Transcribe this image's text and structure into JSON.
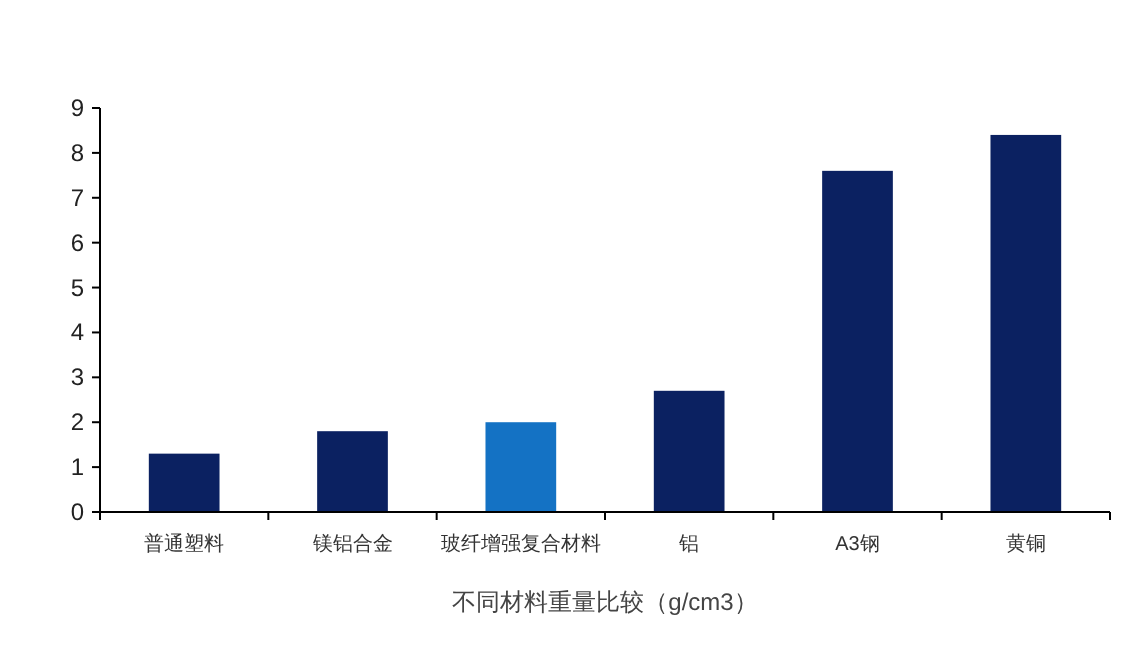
{
  "chart_data": {
    "type": "bar",
    "xlabel": "不同材料重量比较（g/cm3）",
    "categories": [
      "普通塑料",
      "镁铝合金",
      "玻纤增强复合材料",
      "铝",
      "A3钢",
      "黄铜"
    ],
    "values": [
      1.3,
      1.8,
      2.0,
      2.7,
      7.6,
      8.4
    ],
    "colors": [
      "#0b2161",
      "#0b2161",
      "#1472c4",
      "#0b2161",
      "#0b2161",
      "#0b2161"
    ],
    "ylim": [
      0,
      9
    ],
    "yticks": [
      0,
      1,
      2,
      3,
      4,
      5,
      6,
      7,
      8,
      9
    ],
    "grid": false
  }
}
